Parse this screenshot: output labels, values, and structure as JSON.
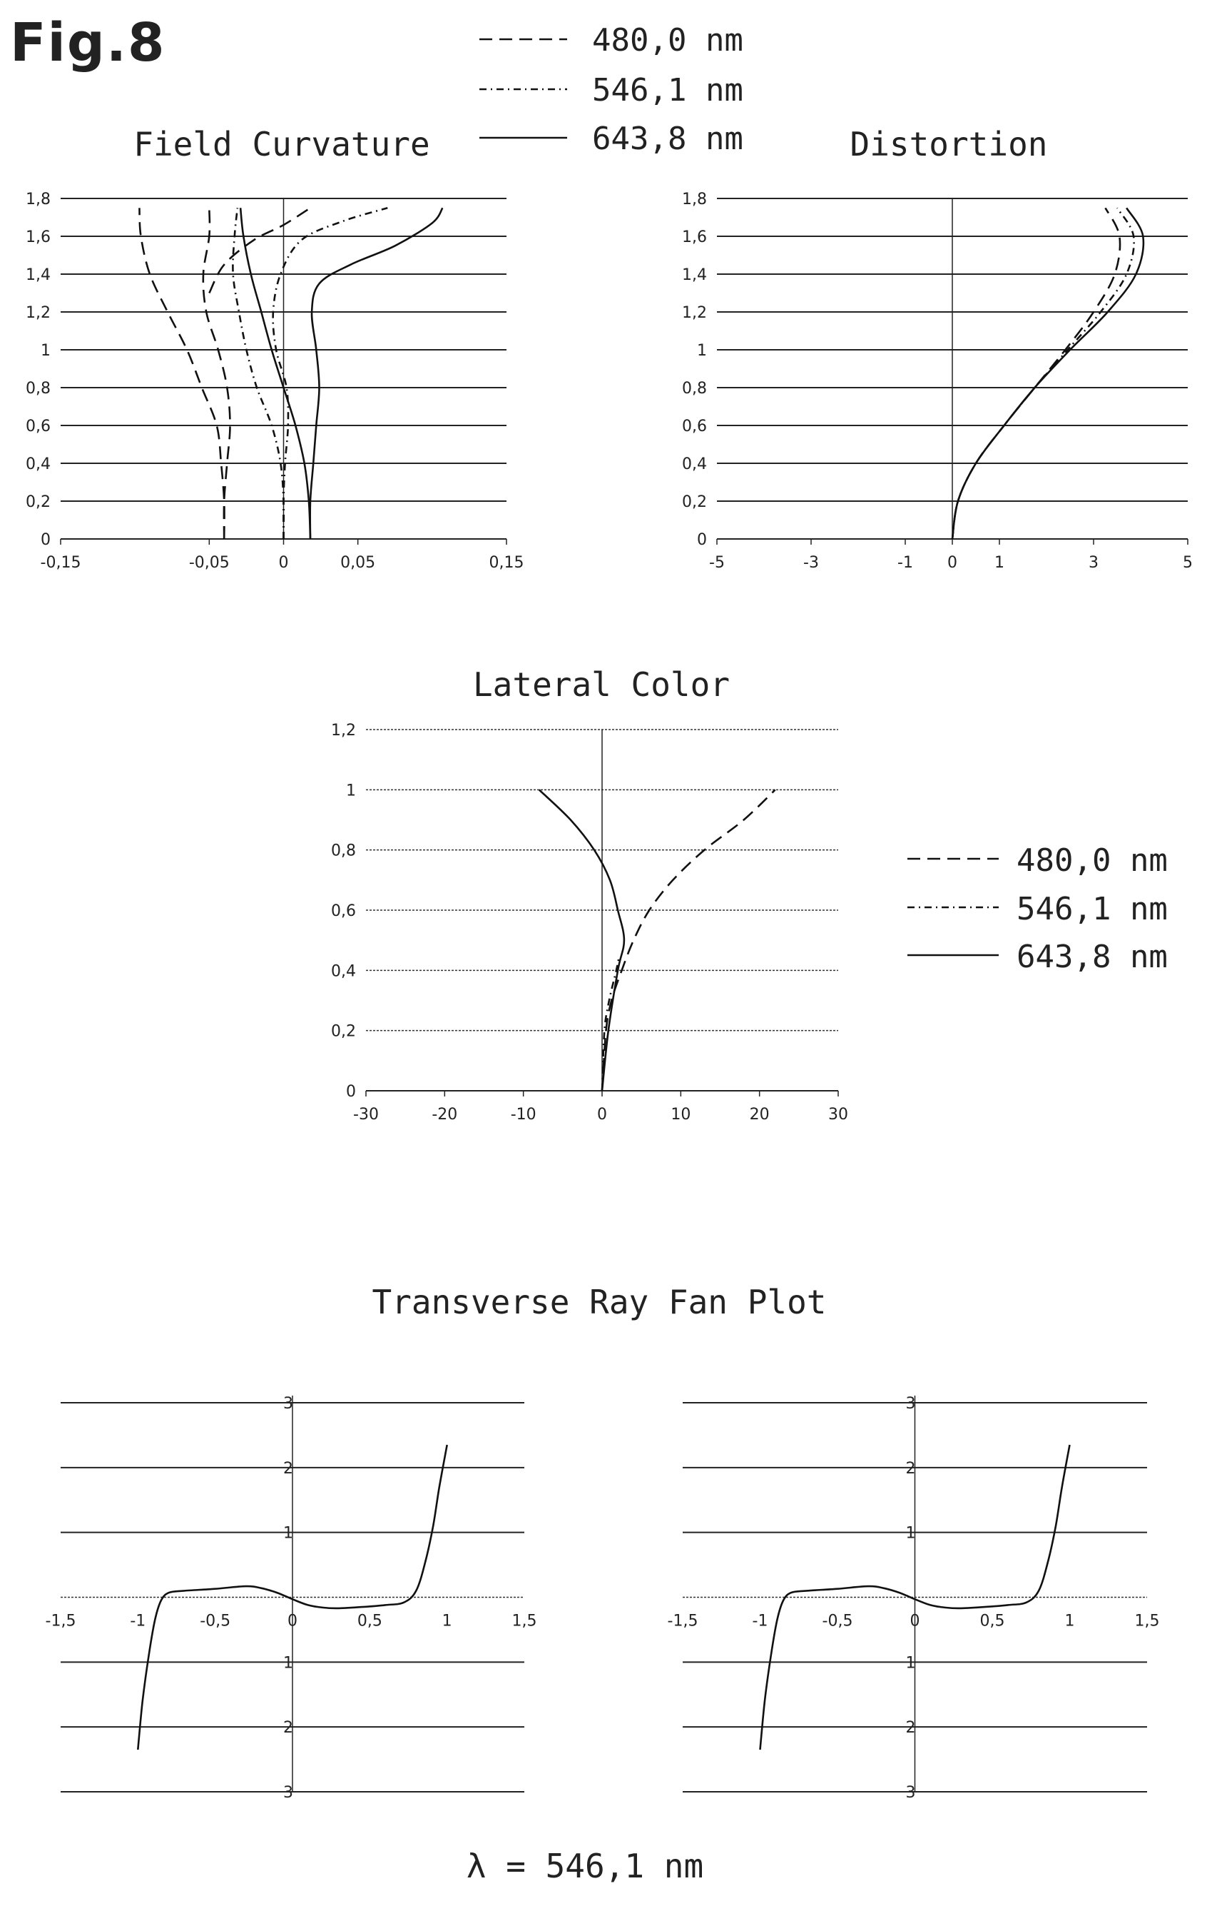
{
  "figure_label": "Fig.8",
  "legend_top": [
    "480,0 nm",
    "546,1 nm",
    "643,8 nm"
  ],
  "legend_mid": [
    "480,0 nm",
    "546,1 nm",
    "643,8 nm"
  ],
  "ray_fan_title": "Transverse Ray Fan Plot",
  "wavelength_label": "λ = 546,1 nm",
  "chart_data": [
    {
      "id": "field",
      "type": "line",
      "title": "Field Curvature",
      "xlim": [
        -0.15,
        0.15
      ],
      "ylim": [
        0,
        1.8
      ],
      "xticks": [
        -0.15,
        -0.05,
        0,
        0.05,
        0.15
      ],
      "xtick_labels": [
        "-0,15",
        "-0,05",
        "0",
        "0,05",
        "0,15"
      ],
      "yticks": [
        0,
        0.2,
        0.4,
        0.6,
        0.8,
        1,
        1.2,
        1.4,
        1.6,
        1.8
      ],
      "ytick_labels": [
        "0",
        "0,2",
        "0,4",
        "0,6",
        "0,8",
        "1",
        "1,2",
        "1,4",
        "1,6",
        "1,8"
      ],
      "series": [
        {
          "name": "480,0 nm",
          "dash": "18 10",
          "points": [
            [
              -0.04,
              0
            ],
            [
              -0.04,
              0.2
            ],
            [
              -0.042,
              0.4
            ],
            [
              -0.045,
              0.6
            ],
            [
              -0.055,
              0.8
            ],
            [
              -0.065,
              1.0
            ],
            [
              -0.078,
              1.2
            ],
            [
              -0.09,
              1.4
            ],
            [
              -0.096,
              1.6
            ],
            [
              -0.097,
              1.75
            ]
          ]
        },
        {
          "name": "480,0 nm",
          "dash": "18 10",
          "points": [
            [
              -0.04,
              0
            ],
            [
              -0.04,
              0.2
            ],
            [
              -0.038,
              0.4
            ],
            [
              -0.036,
              0.6
            ],
            [
              -0.038,
              0.8
            ],
            [
              -0.044,
              1.0
            ],
            [
              -0.052,
              1.2
            ],
            [
              -0.054,
              1.4
            ],
            [
              -0.05,
              1.6
            ],
            [
              -0.05,
              1.75
            ]
          ]
        },
        {
          "name": "480,0 nm",
          "dash": "18 10",
          "points": [
            [
              -0.05,
              1.3
            ],
            [
              -0.04,
              1.45
            ],
            [
              -0.02,
              1.58
            ],
            [
              0.0,
              1.66
            ],
            [
              0.018,
              1.75
            ]
          ]
        },
        {
          "name": "546,1 nm",
          "dash": "10 6 2 6",
          "points": [
            [
              0,
              0
            ],
            [
              0.0,
              0.2
            ],
            [
              0.001,
              0.4
            ],
            [
              0.003,
              0.6
            ],
            [
              0.002,
              0.8
            ],
            [
              -0.005,
              1.0
            ],
            [
              -0.007,
              1.2
            ],
            [
              -0.002,
              1.4
            ],
            [
              0.012,
              1.58
            ],
            [
              0.04,
              1.68
            ],
            [
              0.07,
              1.75
            ]
          ]
        },
        {
          "name": "546,1 nm",
          "dash": "10 6 2 6",
          "points": [
            [
              0,
              0
            ],
            [
              0.0,
              0.2
            ],
            [
              -0.002,
              0.4
            ],
            [
              -0.008,
              0.6
            ],
            [
              -0.018,
              0.8
            ],
            [
              -0.025,
              1.0
            ],
            [
              -0.03,
              1.2
            ],
            [
              -0.034,
              1.4
            ],
            [
              -0.033,
              1.6
            ],
            [
              -0.031,
              1.75
            ]
          ]
        },
        {
          "name": "643,8 nm",
          "dash": "",
          "points": [
            [
              0.018,
              0
            ],
            [
              0.018,
              0.2
            ],
            [
              0.02,
              0.4
            ],
            [
              0.022,
              0.6
            ],
            [
              0.024,
              0.8
            ],
            [
              0.022,
              1.0
            ],
            [
              0.019,
              1.2
            ],
            [
              0.024,
              1.35
            ],
            [
              0.045,
              1.45
            ],
            [
              0.075,
              1.55
            ],
            [
              0.1,
              1.67
            ],
            [
              0.107,
              1.75
            ]
          ]
        },
        {
          "name": "643,8 nm",
          "dash": "",
          "points": [
            [
              0.018,
              0
            ],
            [
              0.017,
              0.2
            ],
            [
              0.014,
              0.4
            ],
            [
              0.008,
              0.6
            ],
            [
              0.0,
              0.8
            ],
            [
              -0.008,
              1.0
            ],
            [
              -0.015,
              1.2
            ],
            [
              -0.022,
              1.4
            ],
            [
              -0.027,
              1.6
            ],
            [
              -0.029,
              1.75
            ]
          ]
        }
      ]
    },
    {
      "id": "dist",
      "type": "line",
      "title": "Distortion",
      "xlim": [
        -5,
        5
      ],
      "ylim": [
        0,
        1.8
      ],
      "xticks": [
        -5,
        -3,
        -1,
        0,
        1,
        3,
        5
      ],
      "xtick_labels": [
        "-5",
        "-3",
        "-1",
        "0",
        "1",
        "3",
        "5"
      ],
      "yticks": [
        0,
        0.2,
        0.4,
        0.6,
        0.8,
        1,
        1.2,
        1.4,
        1.6,
        1.8
      ],
      "ytick_labels": [
        "0",
        "0,2",
        "0,4",
        "0,6",
        "0,8",
        "1",
        "1,2",
        "1,4",
        "1,6",
        "1,8"
      ],
      "series": [
        {
          "name": "480,0 nm",
          "dash": "18 10",
          "points": [
            [
              0,
              0
            ],
            [
              0.12,
              0.2
            ],
            [
              0.5,
              0.4
            ],
            [
              1.1,
              0.6
            ],
            [
              1.75,
              0.8
            ],
            [
              2.4,
              1.0
            ],
            [
              3.0,
              1.2
            ],
            [
              3.45,
              1.4
            ],
            [
              3.55,
              1.6
            ],
            [
              3.25,
              1.75
            ]
          ]
        },
        {
          "name": "546,1 nm",
          "dash": "10 6 2 6",
          "points": [
            [
              0,
              0
            ],
            [
              0.12,
              0.2
            ],
            [
              0.5,
              0.4
            ],
            [
              1.1,
              0.6
            ],
            [
              1.75,
              0.8
            ],
            [
              2.45,
              1.0
            ],
            [
              3.15,
              1.2
            ],
            [
              3.7,
              1.4
            ],
            [
              3.85,
              1.6
            ],
            [
              3.5,
              1.75
            ]
          ]
        },
        {
          "name": "643,8 nm",
          "dash": "",
          "points": [
            [
              0,
              0
            ],
            [
              0.12,
              0.2
            ],
            [
              0.5,
              0.4
            ],
            [
              1.1,
              0.6
            ],
            [
              1.75,
              0.8
            ],
            [
              2.5,
              1.0
            ],
            [
              3.3,
              1.2
            ],
            [
              3.9,
              1.4
            ],
            [
              4.05,
              1.6
            ],
            [
              3.7,
              1.75
            ]
          ]
        }
      ]
    },
    {
      "id": "lat",
      "type": "line",
      "title": "Lateral Color",
      "xlim": [
        -30,
        30
      ],
      "ylim": [
        0,
        1.2
      ],
      "xticks": [
        -30,
        -20,
        -10,
        0,
        10,
        20,
        30
      ],
      "xtick_labels": [
        "-30",
        "-20",
        "-10",
        "0",
        "10",
        "20",
        "30"
      ],
      "yticks": [
        0,
        0.2,
        0.4,
        0.6,
        0.8,
        1,
        1.2
      ],
      "ytick_labels": [
        "0",
        "0,2",
        "0,4",
        "0,6",
        "0,8",
        "1",
        "1,2"
      ],
      "series": [
        {
          "name": "480,0 nm",
          "dash": "18 10",
          "points": [
            [
              0,
              0
            ],
            [
              0.5,
              0.2
            ],
            [
              1.2,
              0.3
            ],
            [
              2.5,
              0.4
            ],
            [
              4,
              0.5
            ],
            [
              6,
              0.6
            ],
            [
              9,
              0.7
            ],
            [
              13,
              0.8
            ],
            [
              18,
              0.9
            ],
            [
              22,
              1.0
            ]
          ]
        },
        {
          "name": "546,1 nm",
          "dash": "10 6 2 6",
          "points": [
            [
              0,
              0
            ],
            [
              0.3,
              0.2
            ],
            [
              0.9,
              0.3
            ],
            [
              1.8,
              0.4
            ],
            [
              2.2,
              0.45
            ]
          ]
        },
        {
          "name": "643,8 nm",
          "dash": "",
          "points": [
            [
              0,
              0
            ],
            [
              0.8,
              0.2
            ],
            [
              2.0,
              0.4
            ],
            [
              2.8,
              0.5
            ],
            [
              2.0,
              0.6
            ],
            [
              1.0,
              0.7
            ],
            [
              -1,
              0.8
            ],
            [
              -4,
              0.9
            ],
            [
              -8,
              1.0
            ]
          ]
        }
      ]
    },
    {
      "id": "fanl",
      "type": "line",
      "title": "",
      "xlim": [
        -1.5,
        1.5
      ],
      "ylim": [
        -3,
        3
      ],
      "xticks": [
        -1.5,
        -1,
        -0.5,
        0,
        0.5,
        1,
        1.5
      ],
      "xtick_labels": [
        "-1,5",
        "-1",
        "-0,5",
        "0",
        "0,5",
        "1",
        "1,5"
      ],
      "yticks": [
        -3,
        -2,
        -1,
        1,
        2,
        3
      ],
      "ytick_labels": [
        "3",
        "2",
        "1",
        "1",
        "2",
        "3"
      ],
      "series": [
        {
          "name": "",
          "dash": "",
          "points": [
            [
              -1.0,
              -2.35
            ],
            [
              -0.97,
              -1.6
            ],
            [
              -0.93,
              -0.9
            ],
            [
              -0.89,
              -0.35
            ],
            [
              -0.85,
              -0.05
            ],
            [
              -0.8,
              0.07
            ],
            [
              -0.7,
              0.1
            ],
            [
              -0.5,
              0.13
            ],
            [
              -0.3,
              0.17
            ],
            [
              -0.2,
              0.14
            ],
            [
              -0.1,
              0.07
            ],
            [
              0,
              -0.03
            ],
            [
              0.1,
              -0.12
            ],
            [
              0.2,
              -0.16
            ],
            [
              0.3,
              -0.17
            ],
            [
              0.45,
              -0.15
            ],
            [
              0.6,
              -0.12
            ],
            [
              0.72,
              -0.08
            ],
            [
              0.8,
              0.1
            ],
            [
              0.86,
              0.55
            ],
            [
              0.91,
              1.1
            ],
            [
              0.95,
              1.7
            ],
            [
              1.0,
              2.35
            ]
          ]
        }
      ]
    },
    {
      "id": "fanr",
      "type": "line",
      "title": "",
      "xlim": [
        -1.5,
        1.5
      ],
      "ylim": [
        -3,
        3
      ],
      "xticks": [
        -1.5,
        -1,
        -0.5,
        0,
        0.5,
        1,
        1.5
      ],
      "xtick_labels": [
        "-1,5",
        "-1",
        "-0,5",
        "0",
        "0,5",
        "1",
        "1,5"
      ],
      "yticks": [
        -3,
        -2,
        -1,
        1,
        2,
        3
      ],
      "ytick_labels": [
        "3",
        "2",
        "1",
        "1",
        "2",
        "3"
      ],
      "series": [
        {
          "name": "",
          "dash": "",
          "points": [
            [
              -1.0,
              -2.35
            ],
            [
              -0.97,
              -1.6
            ],
            [
              -0.93,
              -0.9
            ],
            [
              -0.89,
              -0.35
            ],
            [
              -0.85,
              -0.05
            ],
            [
              -0.8,
              0.07
            ],
            [
              -0.7,
              0.1
            ],
            [
              -0.5,
              0.13
            ],
            [
              -0.3,
              0.17
            ],
            [
              -0.2,
              0.14
            ],
            [
              -0.1,
              0.07
            ],
            [
              0,
              -0.03
            ],
            [
              0.1,
              -0.12
            ],
            [
              0.2,
              -0.16
            ],
            [
              0.3,
              -0.17
            ],
            [
              0.45,
              -0.15
            ],
            [
              0.6,
              -0.12
            ],
            [
              0.72,
              -0.08
            ],
            [
              0.8,
              0.1
            ],
            [
              0.86,
              0.55
            ],
            [
              0.91,
              1.1
            ],
            [
              0.95,
              1.7
            ],
            [
              1.0,
              2.35
            ]
          ]
        }
      ]
    }
  ]
}
